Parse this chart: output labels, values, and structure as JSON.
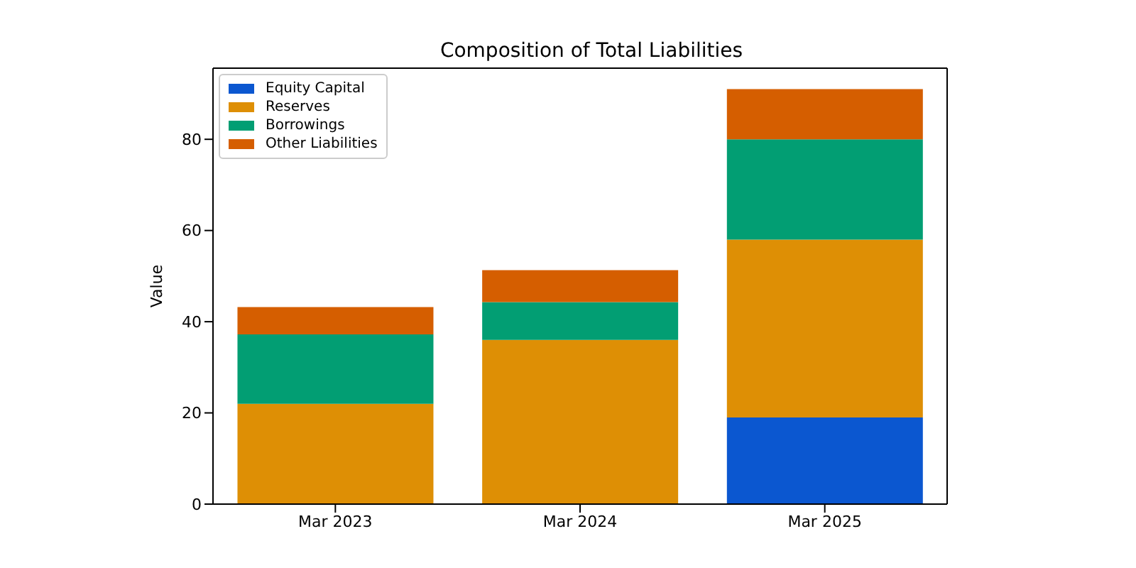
{
  "chart_data": {
    "type": "bar",
    "title": "Composition of Total Liabilities",
    "ylabel": "Value",
    "categories": [
      "Mar 2023",
      "Mar 2024",
      "Mar 2025"
    ],
    "stacked": true,
    "series": [
      {
        "name": "Equity Capital",
        "color": "#0b57d0",
        "values": [
          0,
          0,
          19
        ]
      },
      {
        "name": "Reserves",
        "color": "#de8f05",
        "values": [
          22,
          36,
          39
        ]
      },
      {
        "name": "Borrowings",
        "color": "#029e73",
        "values": [
          15.2,
          8.3,
          22
        ]
      },
      {
        "name": "Other Liabilities",
        "color": "#d55e00",
        "values": [
          6,
          7,
          11
        ]
      }
    ],
    "ylim": [
      0,
      95.6
    ],
    "yticks": [
      0,
      20,
      40,
      60,
      80
    ],
    "grid": false,
    "legend": "top left"
  }
}
